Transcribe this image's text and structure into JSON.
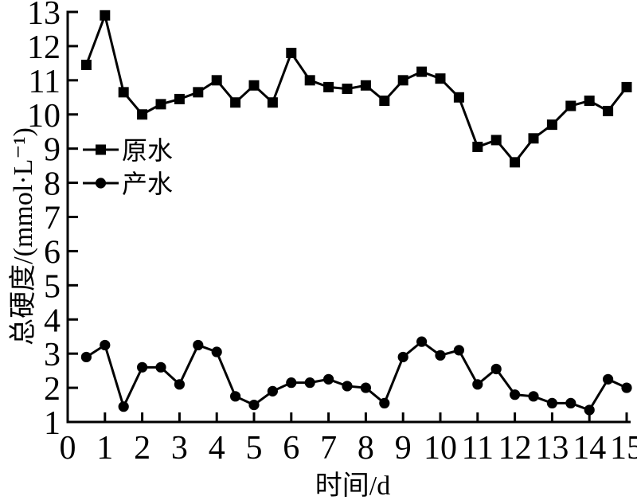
{
  "figure": {
    "background": "#ffffff",
    "ink_color": "#000000"
  },
  "chart_data": {
    "type": "line",
    "title": "",
    "xlabel": "时间/d",
    "ylabel": "总硬度/(mmol·L⁻¹)",
    "xlim": [
      0,
      15
    ],
    "ylim": [
      1,
      13
    ],
    "x_ticks": [
      0,
      1,
      2,
      3,
      4,
      5,
      6,
      7,
      8,
      9,
      10,
      11,
      12,
      13,
      14,
      15
    ],
    "y_ticks": [
      1,
      2,
      3,
      4,
      5,
      6,
      7,
      8,
      9,
      10,
      11,
      12,
      13
    ],
    "grid": false,
    "legend": {
      "position": "inside-upper-left",
      "entries": [
        "原水",
        "产水"
      ]
    },
    "x": [
      0.5,
      1,
      1.5,
      2,
      2.5,
      3,
      3.5,
      4,
      4.5,
      5,
      5.5,
      6,
      6.5,
      7,
      7.5,
      8,
      8.5,
      9,
      9.5,
      10,
      10.5,
      11,
      11.5,
      12,
      12.5,
      13,
      13.5,
      14,
      14.5,
      15
    ],
    "series": [
      {
        "name": "原水",
        "marker": "square",
        "color": "#000000",
        "values": [
          11.45,
          12.9,
          10.65,
          10.0,
          10.3,
          10.45,
          10.65,
          11.0,
          10.35,
          10.85,
          10.35,
          11.8,
          11.0,
          10.8,
          10.75,
          10.85,
          10.4,
          11.0,
          11.25,
          11.05,
          10.5,
          9.05,
          9.25,
          8.6,
          9.3,
          9.7,
          10.25,
          10.4,
          10.1,
          10.8
        ]
      },
      {
        "name": "产水",
        "marker": "circle",
        "color": "#000000",
        "values": [
          2.9,
          3.25,
          1.45,
          2.6,
          2.6,
          2.1,
          3.25,
          3.05,
          1.75,
          1.5,
          1.9,
          2.15,
          2.15,
          2.25,
          2.05,
          2.0,
          1.55,
          2.9,
          3.35,
          2.95,
          3.1,
          2.1,
          2.55,
          1.8,
          1.75,
          1.55,
          1.55,
          1.35,
          2.25,
          2.0
        ]
      }
    ]
  }
}
